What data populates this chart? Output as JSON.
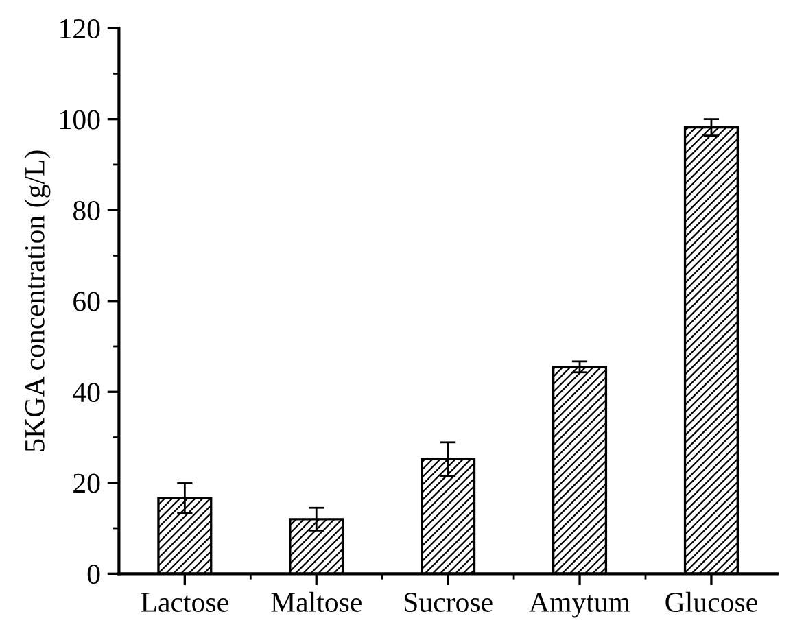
{
  "chart_data": {
    "type": "bar",
    "ylabel": "5KGA concentration (g/L)",
    "categories": [
      "Lactose",
      "Maltose",
      "Sucrose",
      "Amytum",
      "Glucose"
    ],
    "values": [
      16.6,
      12.0,
      25.2,
      45.5,
      98.2
    ],
    "errors": [
      3.3,
      2.5,
      3.7,
      1.2,
      1.8
    ],
    "color": "#000000",
    "ylim": [
      0,
      120
    ],
    "yticks": [
      0,
      20,
      40,
      60,
      80,
      100,
      120
    ],
    "grid": false
  }
}
